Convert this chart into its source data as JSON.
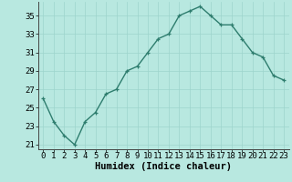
{
  "x": [
    0,
    1,
    2,
    3,
    4,
    5,
    6,
    7,
    8,
    9,
    10,
    11,
    12,
    13,
    14,
    15,
    16,
    17,
    18,
    19,
    20,
    21,
    22,
    23
  ],
  "y": [
    26,
    23.5,
    22,
    21,
    23.5,
    24.5,
    26.5,
    27,
    29,
    29.5,
    31,
    32.5,
    33,
    35,
    35.5,
    36,
    35,
    34,
    34,
    32.5,
    31,
    30.5,
    28.5,
    28
  ],
  "line_color": "#2e7d6e",
  "marker": "+",
  "marker_color": "#2e7d6e",
  "bg_color": "#b8e8e0",
  "grid_color": "#9dd4cc",
  "xlabel": "Humidex (Indice chaleur)",
  "ylabel": "",
  "xlim": [
    -0.5,
    23.5
  ],
  "ylim": [
    20.5,
    36.5
  ],
  "yticks": [
    21,
    23,
    25,
    27,
    29,
    31,
    33,
    35
  ],
  "xticks": [
    0,
    1,
    2,
    3,
    4,
    5,
    6,
    7,
    8,
    9,
    10,
    11,
    12,
    13,
    14,
    15,
    16,
    17,
    18,
    19,
    20,
    21,
    22,
    23
  ],
  "xlabel_fontsize": 7.5,
  "tick_fontsize": 6.5,
  "line_width": 1.0
}
